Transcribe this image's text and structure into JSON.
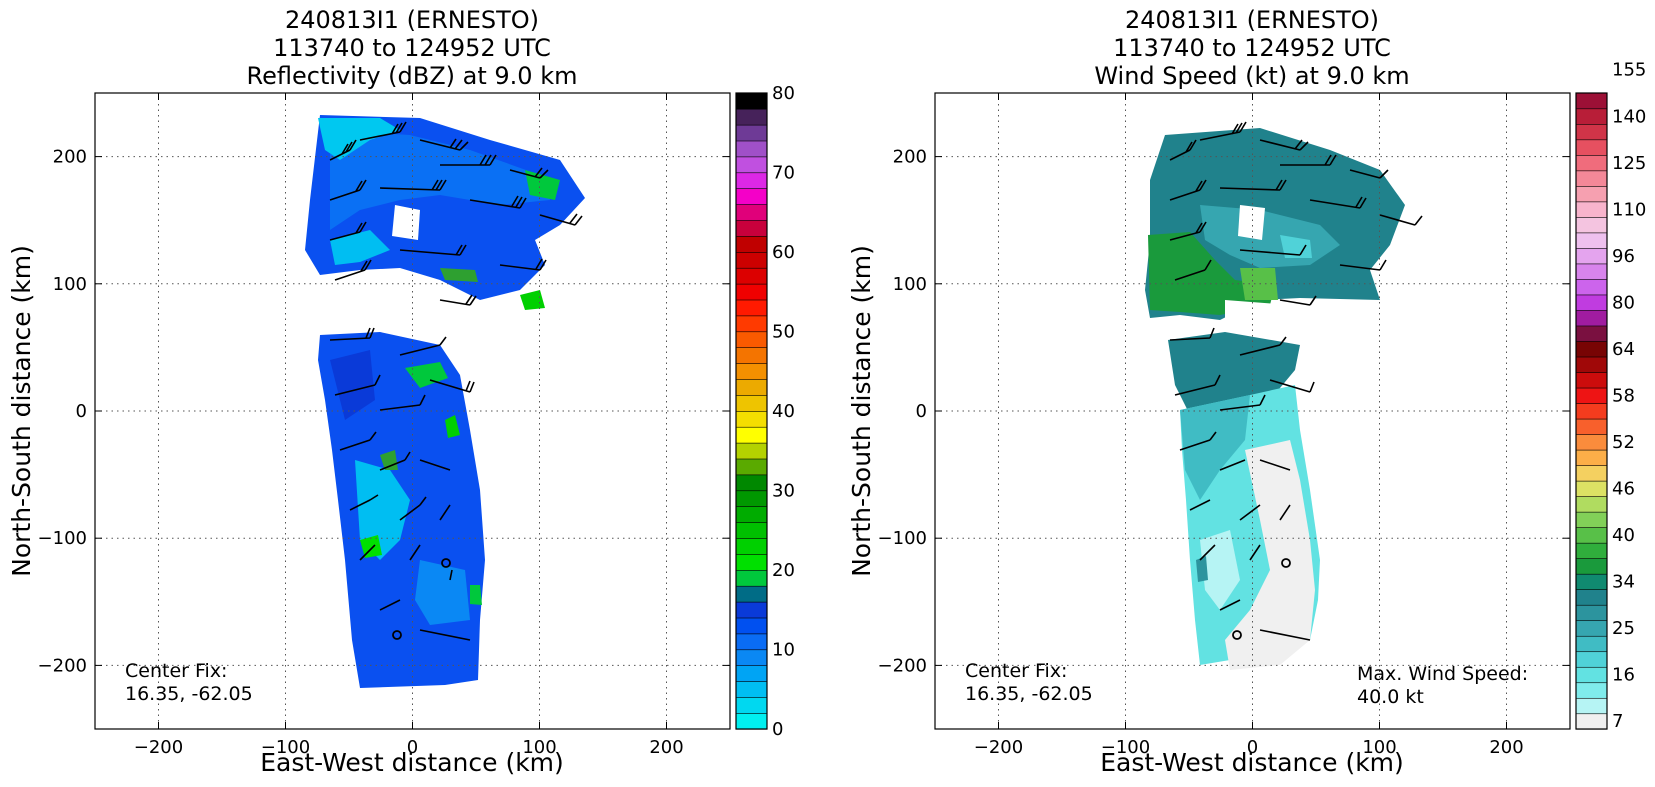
{
  "chart_data": [
    {
      "type": "heatmap",
      "title_lines": [
        "240813I1 (ERNESTO)",
        "113740 to 124952 UTC",
        "Reflectivity (dBZ) at 9.0 km"
      ],
      "xlabel": "East-West distance (km)",
      "ylabel": "North-South distance (km)",
      "xlim": [
        -250,
        250
      ],
      "ylim": [
        -250,
        250
      ],
      "xticks": [
        -200,
        -100,
        0,
        100,
        200
      ],
      "yticks": [
        -200,
        -100,
        0,
        100,
        200
      ],
      "xtick_labels": [
        "−200",
        "−100",
        "0",
        "100",
        "200"
      ],
      "ytick_labels": [
        "−200",
        "−100",
        "0",
        "100",
        "200"
      ],
      "grid": true,
      "center_fix_label": "Center Fix:",
      "center_fix_value": "16.35, -62.05",
      "colorbar": {
        "ticks": [
          "0",
          "10",
          "20",
          "30",
          "40",
          "50",
          "60",
          "70",
          "80"
        ],
        "colors": [
          "#00f0f0",
          "#00d8f0",
          "#00bef2",
          "#00a4f4",
          "#0a88f4",
          "#0a6cf4",
          "#0050f0",
          "#0a3ad8",
          "#006c86",
          "#00c83c",
          "#00e000",
          "#00d000",
          "#00c000",
          "#00ac00",
          "#009800",
          "#008800",
          "#5aaa00",
          "#b4d200",
          "#ffff00",
          "#f4de00",
          "#eec400",
          "#ecaa00",
          "#f49000",
          "#f47400",
          "#fa5a00",
          "#ff3a00",
          "#ff1a00",
          "#f00000",
          "#dc0000",
          "#cc0000",
          "#c00000",
          "#c8003c",
          "#e0007a",
          "#f400c8",
          "#dc28e6",
          "#c050e0",
          "#a050c8",
          "#6e3a96",
          "#46225a",
          "#000000"
        ]
      },
      "series": [
        {
          "region": "northern arm",
          "extent_x": [
            -70,
            135
          ],
          "extent_y": [
            85,
            235
          ]
        },
        {
          "region": "southern body",
          "extent_x": [
            -70,
            55
          ],
          "extent_y": [
            -220,
            60
          ]
        }
      ]
    },
    {
      "type": "heatmap",
      "title_lines": [
        "240813I1 (ERNESTO)",
        "113740 to 124952 UTC",
        "Wind Speed (kt) at 9.0 km"
      ],
      "xlabel": "East-West distance (km)",
      "ylabel": "North-South distance (km)",
      "xlim": [
        -250,
        250
      ],
      "ylim": [
        -250,
        250
      ],
      "xticks": [
        -200,
        -100,
        0,
        100,
        200
      ],
      "yticks": [
        -200,
        -100,
        0,
        100,
        200
      ],
      "xtick_labels": [
        "−200",
        "−100",
        "0",
        "100",
        "200"
      ],
      "ytick_labels": [
        "−200",
        "−100",
        "0",
        "100",
        "200"
      ],
      "grid": true,
      "center_fix_label": "Center Fix:",
      "center_fix_value": "16.35, -62.05",
      "max_wind_label": "Max. Wind Speed:",
      "max_wind_value": "40.0 kt",
      "colorbar": {
        "ticks": [
          "7",
          "16",
          "25",
          "34",
          "40",
          "46",
          "52",
          "58",
          "64",
          "80",
          "96",
          "110",
          "125",
          "140",
          "155"
        ],
        "colors": [
          "#f0f0f0",
          "#b6f4f4",
          "#80ecec",
          "#62e2e2",
          "#50d2d8",
          "#40bcc4",
          "#36a6b0",
          "#2c949e",
          "#20828c",
          "#108a70",
          "#1a9a3c",
          "#30ae3c",
          "#58c048",
          "#82d058",
          "#b0dc60",
          "#dce264",
          "#f4d060",
          "#fcae48",
          "#fa8c3c",
          "#f8602c",
          "#f43c1e",
          "#ee1414",
          "#cc0c0c",
          "#a00808",
          "#780404",
          "#7a1040",
          "#a01ca0",
          "#c03ce0",
          "#cc64ec",
          "#d884ec",
          "#e4a4ee",
          "#eec0ee",
          "#f4c4e0",
          "#f8b4cc",
          "#f6a0b0",
          "#f48898",
          "#f06c7c",
          "#e65060",
          "#d03448",
          "#b81e38",
          "#9c1036"
        ]
      },
      "series": [
        {
          "region": "northern arm",
          "extent_x": [
            -80,
            130
          ],
          "extent_y": [
            80,
            230
          ]
        },
        {
          "region": "southern body",
          "extent_x": [
            -70,
            55
          ],
          "extent_y": [
            -195,
            60
          ]
        }
      ]
    }
  ]
}
